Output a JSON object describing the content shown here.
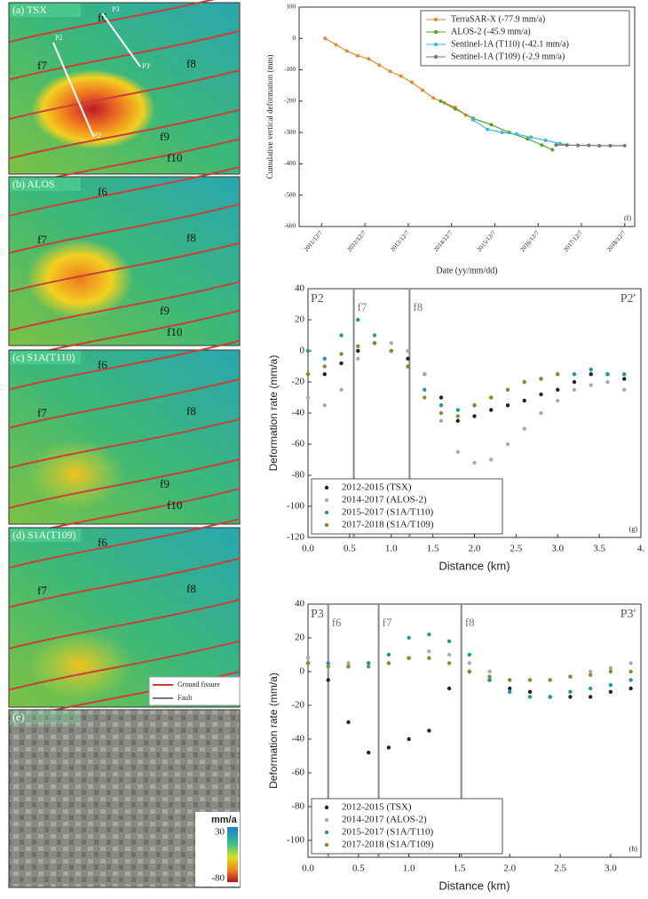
{
  "maps": {
    "panels": [
      {
        "label": "(a) TSX",
        "faults": [
          "f6",
          "f7",
          "f8",
          "f9",
          "f10"
        ],
        "profiles": [
          "P2",
          "P2'",
          "P3",
          "P3'"
        ]
      },
      {
        "label": "(b) ALOS",
        "faults": [
          "f6",
          "f7",
          "f8",
          "f9",
          "f10"
        ]
      },
      {
        "label": "(c) S1A(T110)",
        "faults": [
          "f6",
          "f7",
          "f8",
          "f9",
          "f10"
        ]
      },
      {
        "label": "(d) S1A(T109)",
        "faults": [
          "f6",
          "f7",
          "f8"
        ]
      },
      {
        "label": "(e)"
      }
    ],
    "legend": [
      "Ground fissure",
      "Fault"
    ],
    "colorbar": {
      "unit": "mm/a",
      "max": 30,
      "min": -80
    }
  },
  "chart_data": [
    {
      "type": "line",
      "panel_label": "(f)",
      "x_label": "Date (yy/mm/dd)",
      "y_label": "Cumulative vertical deformation (mm)",
      "xlim": [
        "2011/6/1",
        "2019/3/1"
      ],
      "xticks": [
        "2011/12/7",
        "2012/12/7",
        "2013/12/7",
        "2014/12/7",
        "2015/12/7",
        "2016/12/7",
        "2017/12/7",
        "2018/12/7"
      ],
      "ylim": [
        -600,
        100
      ],
      "yticks": [
        100,
        0,
        -100,
        -200,
        -300,
        -400,
        -500,
        -600
      ],
      "legend": "upper right",
      "series": [
        {
          "name": "TerraSAR-X (-77.9 mm/a)",
          "color": "#e8892a",
          "x": [
            "2012/1/7",
            "2012/4/7",
            "2012/7/7",
            "2012/10/7",
            "2013/1/7",
            "2013/4/7",
            "2013/7/7",
            "2013/10/7",
            "2014/1/7",
            "2014/4/7",
            "2014/7/7",
            "2014/10/7",
            "2015/1/7",
            "2015/4/7"
          ],
          "values": [
            0,
            -20,
            -40,
            -55,
            -65,
            -85,
            -105,
            -120,
            -140,
            -165,
            -190,
            -205,
            -220,
            -245
          ]
        },
        {
          "name": "ALOS-2 (-45.9 mm/a)",
          "color": "#5aa02c",
          "x": [
            "2014/9/7",
            "2015/1/7",
            "2015/6/7",
            "2015/11/7",
            "2016/4/7",
            "2016/9/7",
            "2017/1/7",
            "2017/4/7"
          ],
          "values": [
            -200,
            -225,
            -255,
            -275,
            -300,
            -320,
            -340,
            -355
          ]
        },
        {
          "name": "Sentinel-1A (T110) (-42.1 mm/a)",
          "color": "#3db8e0",
          "x": [
            "2015/6/7",
            "2015/10/7",
            "2016/2/7",
            "2016/6/7",
            "2016/10/7",
            "2017/2/7",
            "2017/6/7",
            "2017/8/7"
          ],
          "values": [
            -260,
            -290,
            -300,
            -305,
            -315,
            -325,
            -335,
            -340
          ]
        },
        {
          "name": "Sentinel-1A (T109) (-2.9 mm/a)",
          "color": "#777777",
          "x": [
            "2017/5/7",
            "2017/8/7",
            "2017/11/7",
            "2018/2/7",
            "2018/5/7",
            "2018/8/7",
            "2018/12/7"
          ],
          "values": [
            -340,
            -340,
            -341,
            -341,
            -342,
            -342,
            -342
          ]
        }
      ]
    },
    {
      "type": "scatter",
      "panel_label": "(g)",
      "x_label": "Distance (km)",
      "y_label": "Deformation rate (mm/a)",
      "annotations": [
        "P2",
        "P2'"
      ],
      "vlines": [
        {
          "x": 0.55,
          "label": "f7"
        },
        {
          "x": 1.22,
          "label": "f8"
        }
      ],
      "xlim": [
        0,
        4
      ],
      "xticks": [
        {
          "value": 0,
          "label": "0.0"
        },
        0.5,
        {
          "value": 1,
          "label": "1.0"
        },
        1.5,
        {
          "value": 2,
          "label": "2.0"
        },
        2.5,
        {
          "value": 3,
          "label": "3.0"
        },
        3.5,
        {
          "value": 4,
          "label": "4."
        }
      ],
      "ylim": [
        -120,
        40
      ],
      "yticks": [
        -120,
        -100,
        -80,
        -60,
        -40,
        -20,
        0,
        20,
        40
      ],
      "legend": "lower left",
      "series": [
        {
          "name": "2012-2015 (TSX)",
          "color": "#222222",
          "x": [
            0,
            0.2,
            0.4,
            0.6,
            0.8,
            1.0,
            1.2,
            1.4,
            1.6,
            1.8,
            2.0,
            2.2,
            2.4,
            2.6,
            2.8,
            3.0,
            3.2,
            3.4,
            3.6,
            3.8
          ],
          "values": [
            -15,
            -15,
            -8,
            0,
            5,
            0,
            -5,
            -15,
            -30,
            -45,
            -42,
            -38,
            -35,
            -32,
            -28,
            -25,
            -20,
            -15,
            -15,
            -18
          ]
        },
        {
          "name": "2014-2017 (ALOS-2)",
          "color": "#aaaaaa",
          "x": [
            0,
            0.2,
            0.4,
            0.6,
            0.8,
            1.0,
            1.2,
            1.4,
            1.6,
            1.8,
            2.0,
            2.2,
            2.4,
            2.6,
            2.8,
            3.0,
            3.2,
            3.4,
            3.6,
            3.8
          ],
          "values": [
            -30,
            -35,
            -25,
            -5,
            5,
            5,
            0,
            -15,
            -45,
            -65,
            -72,
            -70,
            -60,
            -50,
            -40,
            -32,
            -25,
            -22,
            -20,
            -25
          ]
        },
        {
          "name": "2015-2017 (S1A/T110)",
          "color": "#1a9aa0",
          "x": [
            0,
            0.2,
            0.4,
            0.6,
            0.8,
            1.0,
            1.2,
            1.4,
            1.6,
            1.8,
            2.0,
            2.2,
            2.4,
            2.6,
            2.8,
            3.0,
            3.2,
            3.4,
            3.6,
            3.8
          ],
          "values": [
            0,
            -5,
            10,
            20,
            10,
            0,
            -10,
            -25,
            -35,
            -38,
            -35,
            -30,
            -25,
            -20,
            -18,
            -15,
            -15,
            -12,
            -15,
            -15
          ]
        },
        {
          "name": "2017-2018 (S1A/T109)",
          "color": "#8c8a2a",
          "x": [
            0,
            0.2,
            0.4,
            0.6,
            0.8,
            1.0,
            1.2,
            1.4,
            1.6,
            1.8,
            2.0,
            2.2,
            2.4,
            2.6,
            2.8,
            3.0
          ],
          "values": [
            -15,
            -10,
            -2,
            3,
            5,
            0,
            -10,
            -30,
            -40,
            -42,
            -35,
            -30,
            -25,
            -20,
            -18,
            -15
          ]
        }
      ]
    },
    {
      "type": "scatter",
      "panel_label": "(h)",
      "x_label": "Distance (km)",
      "y_label": "Deformation rate (mm/a)",
      "annotations": [
        "P3",
        "P3'"
      ],
      "vlines": [
        {
          "x": 0.2,
          "label": "f6"
        },
        {
          "x": 0.7,
          "label": "f7"
        },
        {
          "x": 1.52,
          "label": "f8"
        }
      ],
      "xlim": [
        0,
        3.3
      ],
      "xticks": [
        {
          "value": 0,
          "label": "0.0"
        },
        0.5,
        {
          "value": 1,
          "label": "1.0"
        },
        1.5,
        {
          "value": 2,
          "label": "2.0"
        },
        2.5,
        {
          "value": 3,
          "label": "3.0"
        }
      ],
      "ylim": [
        -110,
        40
      ],
      "yticks": [
        -100,
        -80,
        -60,
        -40,
        -20,
        0,
        20,
        40
      ],
      "legend": "lower left",
      "series": [
        {
          "name": "2012-2015 (TSX)",
          "color": "#222222",
          "x": [
            0,
            0.2,
            0.4,
            0.6,
            0.8,
            1.0,
            1.2,
            1.4,
            1.6,
            1.8,
            2.0,
            2.2,
            2.4,
            2.6,
            2.8,
            3.0,
            3.2
          ],
          "values": [
            5,
            -5,
            -30,
            -48,
            -45,
            -40,
            -35,
            -10,
            0,
            -5,
            -10,
            -12,
            -15,
            -15,
            -15,
            -12,
            -10
          ]
        },
        {
          "name": "2014-2017 (ALOS-2)",
          "color": "#aaaaaa",
          "x": [
            0,
            0.2,
            0.4,
            0.6,
            0.8,
            1.0,
            1.2,
            1.4,
            1.6,
            1.8,
            2.0,
            2.2,
            2.4,
            2.6,
            2.8,
            3.0,
            3.2
          ],
          "values": [
            8,
            5,
            5,
            5,
            5,
            8,
            12,
            10,
            5,
            0,
            -5,
            -5,
            -5,
            -3,
            0,
            2,
            5
          ]
        },
        {
          "name": "2015-2017 (S1A/T110)",
          "color": "#1a9aa0",
          "x": [
            0,
            0.2,
            0.4,
            0.6,
            0.8,
            1.0,
            1.2,
            1.4,
            1.6,
            1.8,
            2.0,
            2.2,
            2.4,
            2.6,
            2.8,
            3.0,
            3.2
          ],
          "values": [
            5,
            5,
            3,
            5,
            10,
            20,
            22,
            18,
            10,
            -5,
            -12,
            -15,
            -15,
            -12,
            -10,
            -8,
            -5
          ]
        },
        {
          "name": "2017-2018 (S1A/T109)",
          "color": "#8c8a2a",
          "x": [
            0,
            0.2,
            0.4,
            0.6,
            0.8,
            1.0,
            1.2,
            1.4,
            1.6,
            1.8,
            2.0,
            2.2,
            2.4,
            2.6,
            2.8,
            3.0,
            3.2
          ],
          "values": [
            5,
            3,
            3,
            3,
            5,
            8,
            8,
            5,
            0,
            -3,
            -5,
            -5,
            -5,
            -3,
            -2,
            0,
            0
          ]
        }
      ]
    }
  ]
}
